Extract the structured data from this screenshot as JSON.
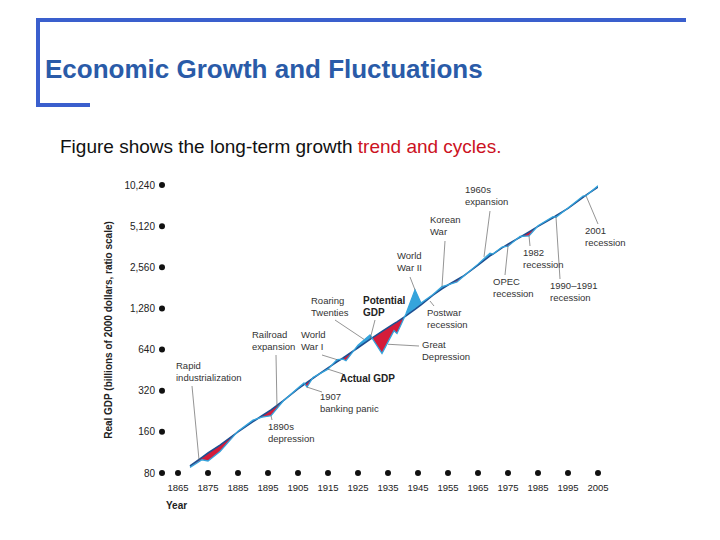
{
  "chart_data": {
    "type": "line",
    "title": "Economic Growth and Fluctuations",
    "subtitle": [
      "Figure shows the long-term growth",
      "trend and cycles."
    ],
    "y_label": "Real GDP (billions of 2000 dollars, ratio scale)",
    "x_label": "Year",
    "log": "y",
    "grid": false,
    "xlim": [
      1865,
      2005
    ],
    "xticks": [
      1865,
      1875,
      1885,
      1895,
      1905,
      1915,
      1925,
      1935,
      1945,
      1955,
      1965,
      1975,
      1985,
      1995,
      2005
    ],
    "ylim": [
      80,
      10240
    ],
    "yticks": [
      80,
      160,
      320,
      640,
      {
        "value": 1280,
        "label": "1,280"
      },
      {
        "value": 2560,
        "label": "2,560"
      },
      {
        "value": 5120,
        "label": "5,120"
      },
      {
        "value": 10240,
        "label": "10,240"
      }
    ],
    "x": [
      1869,
      1873,
      1875,
      1879,
      1885,
      1890,
      1893,
      1896,
      1900,
      1905,
      1907,
      1908,
      1910,
      1915,
      1918,
      1920,
      1921,
      1925,
      1929,
      1933,
      1937,
      1938,
      1941,
      1944,
      1946,
      1950,
      1953,
      1955,
      1958,
      1960,
      1965,
      1969,
      1970,
      1973,
      1975,
      1979,
      1982,
      1985,
      1990,
      1991,
      1995,
      2000,
      2001,
      2005
    ],
    "series": [
      {
        "name": "Potential GDP",
        "color": "#1d4f91",
        "values": [
          90,
          104,
          112,
          128,
          160,
          190,
          210,
          232,
          270,
          330,
          355,
          368,
          395,
          470,
          520,
          555,
          575,
          660,
          760,
          870,
          990,
          1020,
          1130,
          1260,
          1360,
          1600,
          1780,
          1900,
          2080,
          2200,
          2650,
          3100,
          3200,
          3550,
          3780,
          4250,
          4650,
          5100,
          5900,
          6100,
          6900,
          8300,
          8650,
          9900
        ]
      },
      {
        "name": "Actual GDP",
        "color": "#35a4dc",
        "values": [
          88,
          100,
          98,
          115,
          162,
          195,
          205,
          210,
          268,
          335,
          365,
          340,
          400,
          460,
          540,
          545,
          530,
          690,
          820,
          600,
          880,
          840,
          1170,
          1750,
          1400,
          1620,
          1850,
          1900,
          2000,
          2180,
          2700,
          3250,
          3200,
          3600,
          3650,
          4300,
          4350,
          5150,
          6000,
          5950,
          6950,
          8500,
          8550,
          10100
        ]
      }
    ],
    "annotations": [
      {
        "text": "Rapid\nindustrialization",
        "x": 1872,
        "y": 100
      },
      {
        "text": "Railroad\nexpansion",
        "x": 1898,
        "y": 240
      },
      {
        "text": "World\nWar I",
        "x": 1918,
        "y": 540
      },
      {
        "text": "Roaring\nTwenties",
        "x": 1927,
        "y": 760
      },
      {
        "text": "World\nWar II",
        "x": 1944,
        "y": 1750
      },
      {
        "text": "Korean\nWar",
        "x": 1953,
        "y": 1850
      },
      {
        "text": "1960s\nexpansion",
        "x": 1967,
        "y": 3050
      },
      {
        "text": "Postwar\nrecession",
        "x": 1949,
        "y": 1450
      },
      {
        "text": "Great\nDepression",
        "x": 1935,
        "y": 700
      },
      {
        "text": "1907\nbanking panic",
        "x": 1908,
        "y": 340
      },
      {
        "text": "1890s\ndepression",
        "x": 1896,
        "y": 210
      },
      {
        "text": "OPEC\nrecession",
        "x": 1975,
        "y": 3650
      },
      {
        "text": "1982\nrecession",
        "x": 1982,
        "y": 4350
      },
      {
        "text": "1990–1991\nrecession",
        "x": 1991,
        "y": 5950
      },
      {
        "text": "2001\nrecession",
        "x": 2001,
        "y": 8550
      }
    ]
  }
}
